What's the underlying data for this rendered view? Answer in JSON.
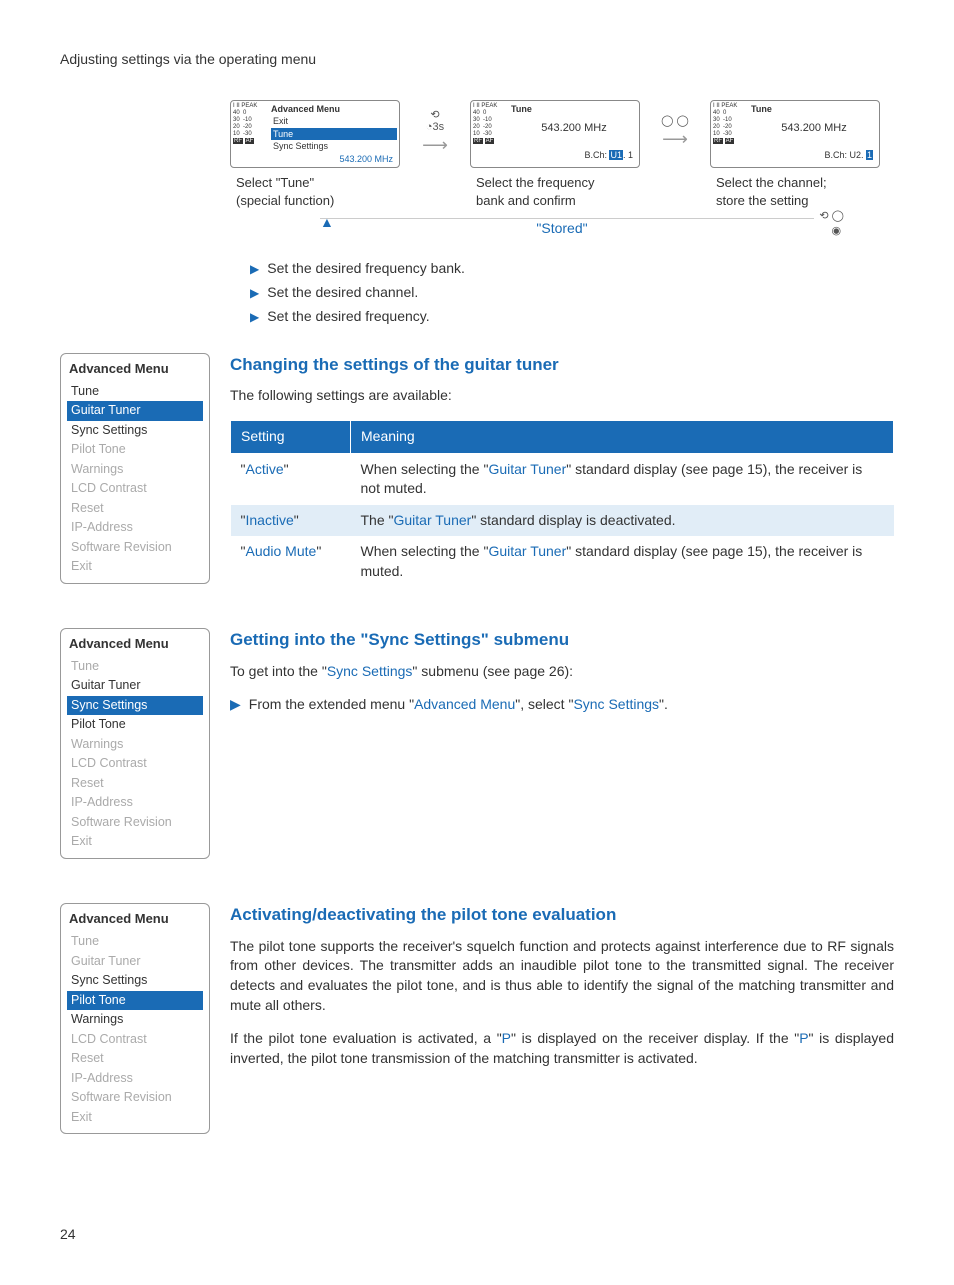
{
  "page_title": "Adjusting settings via the operating menu",
  "page_number": "24",
  "colors": {
    "accent": "#1a6bb5",
    "alt_row": "#e1edf7",
    "page_bg": "#e8f0f7"
  },
  "flow": {
    "step1": {
      "title": "Advanced Menu",
      "rows": [
        "Exit",
        "Tune",
        "Sync Settings"
      ],
      "highlight_index": 1,
      "freq": "543.200 MHz",
      "caption_a": "Select \"Tune\"",
      "caption_b": "(special function)"
    },
    "arrow1_label": "3s",
    "step2": {
      "title": "Tune",
      "main": "543.200 MHz",
      "sub_a": "B.Ch:",
      "sub_b": "U1",
      "sub_c": ". 1",
      "caption_a": "Select the frequency",
      "caption_b": "bank and confirm"
    },
    "step3": {
      "title": "Tune",
      "main": "543.200 MHz",
      "sub_a": "B.Ch: U2.",
      "sub_b": "1",
      "caption_a": "Select the channel;",
      "caption_b": "store the setting"
    },
    "stored": "\"Stored\""
  },
  "bullets": [
    "Set the desired frequency bank.",
    "Set the desired channel.",
    "Set the desired frequency."
  ],
  "section1": {
    "heading": "Changing the settings of the guitar tuner",
    "intro": "The following settings are available:",
    "menu_title": "Advanced Menu",
    "menu_items": [
      {
        "label": "Tune",
        "state": "active-text"
      },
      {
        "label": "Guitar Tuner",
        "state": "hl"
      },
      {
        "label": "Sync Settings",
        "state": "active-text"
      },
      {
        "label": "Pilot Tone",
        "state": ""
      },
      {
        "label": "Warnings",
        "state": ""
      },
      {
        "label": "LCD Contrast",
        "state": ""
      },
      {
        "label": "Reset",
        "state": ""
      },
      {
        "label": "IP-Address",
        "state": ""
      },
      {
        "label": "Software Revision",
        "state": ""
      },
      {
        "label": "Exit",
        "state": ""
      }
    ],
    "table": {
      "headers": [
        "Setting",
        "Meaning"
      ],
      "rows": [
        {
          "setting": "Active",
          "meaning_a": "When selecting the \"",
          "link": "Guitar Tuner",
          "meaning_b": "\" standard display (see page 15), the receiver is not muted."
        },
        {
          "setting": "Inactive",
          "meaning_a": "The \"",
          "link": "Guitar Tuner",
          "meaning_b": "\" standard display is deactivated."
        },
        {
          "setting": "Audio Mute",
          "meaning_a": "When selecting the \"",
          "link": "Guitar Tuner",
          "meaning_b": "\" standard display (see page 15), the receiver is muted."
        }
      ]
    }
  },
  "section2": {
    "heading": "Getting into the \"Sync Settings\" submenu",
    "intro_a": "To get into the \"",
    "intro_link": "Sync Settings",
    "intro_b": "\" submenu (see page 26):",
    "bullet_a": "From the extended menu \"",
    "bullet_link1": "Advanced Menu",
    "bullet_b": "\", select \"",
    "bullet_link2": "Sync Settings",
    "bullet_c": "\".",
    "menu_title": "Advanced Menu",
    "menu_items": [
      {
        "label": "Tune",
        "state": ""
      },
      {
        "label": "Guitar Tuner",
        "state": "active-text"
      },
      {
        "label": "Sync Settings",
        "state": "hl"
      },
      {
        "label": "Pilot Tone",
        "state": "active-text"
      },
      {
        "label": "Warnings",
        "state": ""
      },
      {
        "label": "LCD Contrast",
        "state": ""
      },
      {
        "label": "Reset",
        "state": ""
      },
      {
        "label": "IP-Address",
        "state": ""
      },
      {
        "label": "Software Revision",
        "state": ""
      },
      {
        "label": "Exit",
        "state": ""
      }
    ]
  },
  "section3": {
    "heading": "Activating/deactivating the pilot tone evaluation",
    "para1": "The pilot tone supports the receiver's squelch function and protects against interference due to RF signals from other devices. The transmitter adds an inaudible pilot tone to the transmitted signal. The receiver detects and evaluates the pilot tone, and is thus able to identify the signal of the matching transmitter and mute all others.",
    "para2_a": "If the pilot tone evaluation is activated, a \"",
    "para2_p1": "P",
    "para2_b": "\" is displayed on the receiver display. If the \"",
    "para2_p2": "P",
    "para2_c": "\" is displayed inverted, the pilot tone transmission of the matching transmitter is activated.",
    "menu_title": "Advanced Menu",
    "menu_items": [
      {
        "label": "Tune",
        "state": ""
      },
      {
        "label": "Guitar Tuner",
        "state": ""
      },
      {
        "label": "Sync Settings",
        "state": "active-text"
      },
      {
        "label": "Pilot Tone",
        "state": "hl"
      },
      {
        "label": "Warnings",
        "state": "active-text"
      },
      {
        "label": "LCD Contrast",
        "state": ""
      },
      {
        "label": "Reset",
        "state": ""
      },
      {
        "label": "IP-Address",
        "state": ""
      },
      {
        "label": "Software Revision",
        "state": ""
      },
      {
        "label": "Exit",
        "state": ""
      }
    ]
  },
  "lcd_scale": {
    "col1": [
      "I  II",
      "40",
      "30",
      "20",
      "10",
      "RF"
    ],
    "col2": [
      "PEAK",
      "0",
      "-10",
      "-20",
      "-30",
      "-40",
      "AF"
    ]
  }
}
